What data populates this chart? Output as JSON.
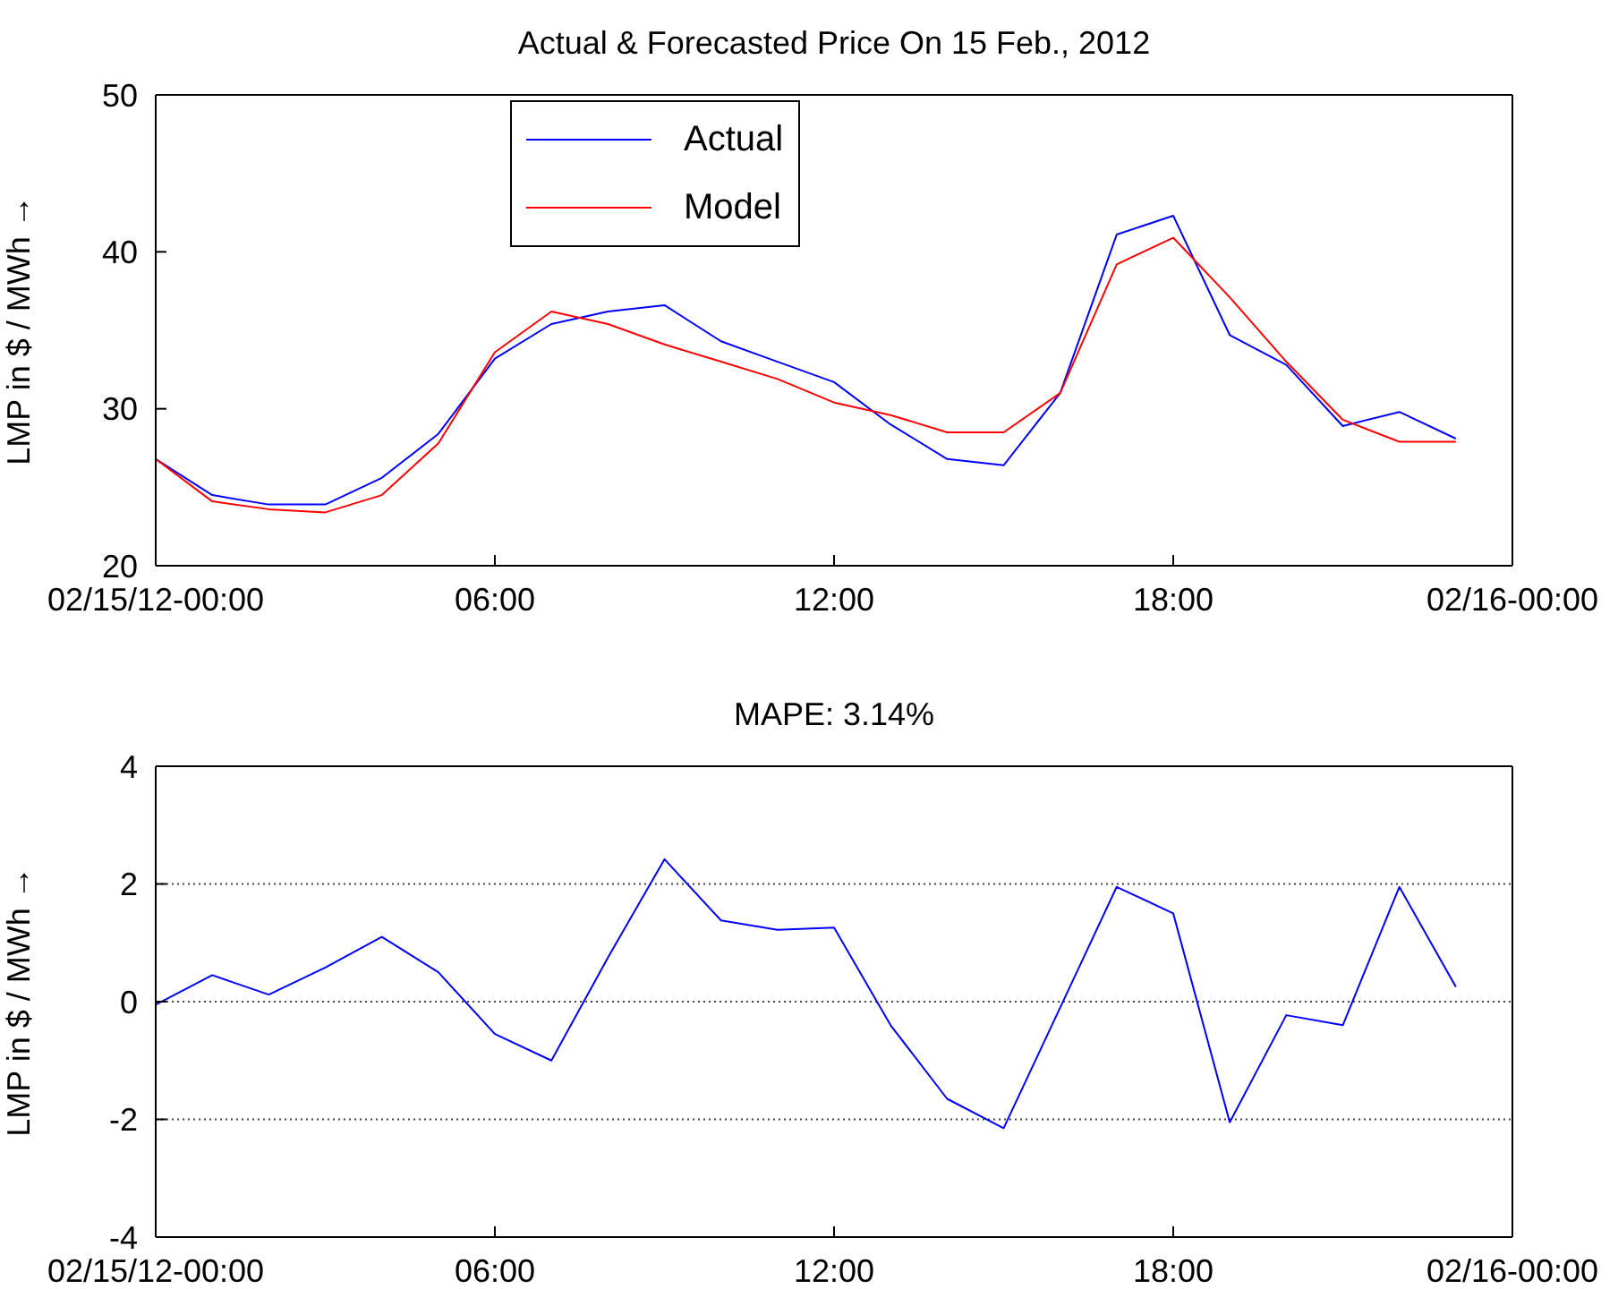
{
  "chart_data": [
    {
      "type": "line",
      "title": "Actual & Forecasted Price On 15 Feb., 2012",
      "ylabel": "LMP in $ / MWh →",
      "x": [
        0,
        1,
        2,
        3,
        4,
        5,
        6,
        7,
        8,
        9,
        10,
        11,
        12,
        13,
        14,
        15,
        16,
        17,
        18,
        19,
        20,
        21,
        22,
        23
      ],
      "series": [
        {
          "name": "Actual",
          "color": "#0000ff",
          "values": [
            26.8,
            24.5,
            23.9,
            23.9,
            25.6,
            28.4,
            33.2,
            35.4,
            36.2,
            36.6,
            34.3,
            33.0,
            31.7,
            29.0,
            26.8,
            26.4,
            31.0,
            41.1,
            42.3,
            34.7,
            32.8,
            28.9,
            29.8,
            28.1
          ]
        },
        {
          "name": "Model",
          "color": "#ff0000",
          "values": [
            26.8,
            24.1,
            23.6,
            23.4,
            24.5,
            27.8,
            33.6,
            36.2,
            35.4,
            34.1,
            33.0,
            31.9,
            30.4,
            29.6,
            28.5,
            28.5,
            31.0,
            39.2,
            40.9,
            37.1,
            33.0,
            29.3,
            27.9,
            27.9
          ]
        }
      ],
      "xlim": [
        0,
        24
      ],
      "xticks": [
        {
          "value": 0,
          "label": "02/15/12-00:00"
        },
        {
          "value": 6,
          "label": "06:00"
        },
        {
          "value": 12,
          "label": "12:00"
        },
        {
          "value": 18,
          "label": "18:00"
        },
        {
          "value": 24,
          "label": "02/16-00:00"
        }
      ],
      "ylim": [
        20,
        50
      ],
      "yticks": [
        20,
        30,
        40,
        50
      ],
      "grid": false,
      "legend": "top"
    },
    {
      "type": "line",
      "title": "MAPE: 3.14%",
      "ylabel": "LMP in $ / MWh →",
      "x": [
        0,
        1,
        2,
        3,
        4,
        5,
        6,
        7,
        8,
        9,
        10,
        11,
        12,
        13,
        14,
        15,
        16,
        17,
        18,
        19,
        20,
        21,
        22,
        23
      ],
      "series": [
        {
          "color": "#0000ff",
          "values": [
            -0.05,
            0.45,
            0.12,
            0.58,
            1.1,
            0.5,
            -0.55,
            -1.0,
            0.75,
            2.42,
            1.38,
            1.22,
            1.26,
            -0.4,
            -1.65,
            -2.15,
            -0.1,
            1.95,
            1.5,
            -2.05,
            -0.23,
            -0.4,
            1.95,
            0.25
          ]
        }
      ],
      "xlim": [
        0,
        24
      ],
      "xticks": [
        {
          "value": 0,
          "label": "02/15/12-00:00"
        },
        {
          "value": 6,
          "label": "06:00"
        },
        {
          "value": 12,
          "label": "12:00"
        },
        {
          "value": 18,
          "label": "18:00"
        },
        {
          "value": 24,
          "label": "02/16-00:00"
        }
      ],
      "ylim": [
        -4,
        4
      ],
      "yticks": [
        -4,
        -2,
        0,
        2,
        4
      ],
      "grid": "y",
      "legend": false
    }
  ]
}
